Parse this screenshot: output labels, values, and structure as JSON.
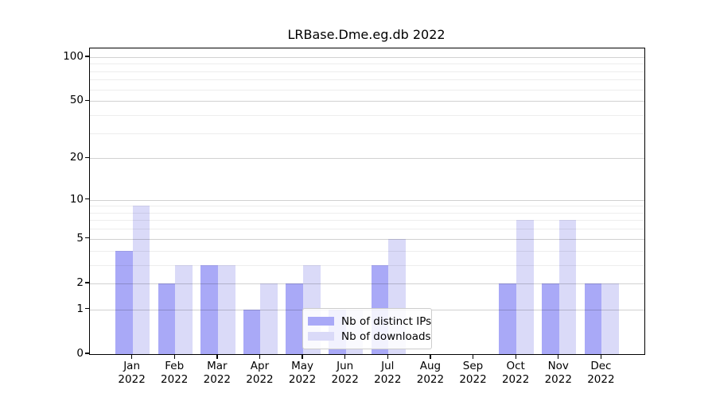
{
  "figure": {
    "title": "LRBase.Dme.eg.db 2022"
  },
  "colors": {
    "distinct_ips": "#a9a9f7",
    "downloads": "#dadaf8",
    "spine": "#000000",
    "text": "#000000",
    "legend_border": "#cccccc"
  },
  "legend": {
    "items": [
      {
        "key": "distinct_ips",
        "label": "Nb of distinct IPs"
      },
      {
        "key": "downloads",
        "label": "Nb of downloads"
      }
    ]
  },
  "chart_data": {
    "type": "bar",
    "title": "LRBase.Dme.eg.db 2022",
    "categories": [
      "Jan",
      "Feb",
      "Mar",
      "Apr",
      "May",
      "Jun",
      "Jul",
      "Aug",
      "Sep",
      "Oct",
      "Nov",
      "Dec"
    ],
    "year": "2022",
    "series": [
      {
        "name": "Nb of distinct IPs",
        "color_key": "distinct_ips",
        "values": [
          4,
          2,
          3,
          1,
          2,
          1,
          3,
          0,
          0,
          2,
          2,
          2
        ]
      },
      {
        "name": "Nb of downloads",
        "color_key": "downloads",
        "values": [
          9,
          3,
          3,
          2,
          3,
          1,
          5,
          0,
          0,
          7,
          7,
          2
        ]
      }
    ],
    "xlabel": "",
    "ylabel": "",
    "y_axis": {
      "scale": "log1p",
      "ticks": [
        0,
        1,
        2,
        5,
        10,
        20,
        50,
        100
      ],
      "minor_ticks": [
        3,
        4,
        6,
        7,
        8,
        9,
        30,
        40,
        60,
        70,
        80,
        90
      ],
      "max": 114.4
    },
    "grid": "on",
    "legend_position": "lower-center-right"
  }
}
